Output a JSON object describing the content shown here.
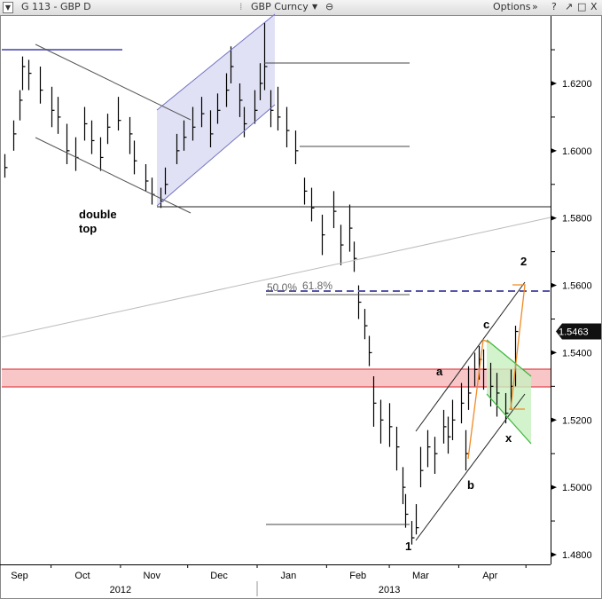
{
  "window": {
    "menu_icon": "triangle-down-icon",
    "title": "G 113 - GBP D",
    "ticker": "GBP Curncy",
    "ticker_icons": [
      "chevron-down-icon",
      "link-icon"
    ],
    "options_label": "Options",
    "options_icon": "double-chevron-down-icon",
    "controls": [
      "?",
      "↗",
      "□",
      "X"
    ]
  },
  "chart_data": {
    "type": "ohlc-bar",
    "ylim": [
      1.475,
      1.64
    ],
    "xlim": [
      "2012-09-09",
      "2013-05-12"
    ],
    "y_ticks": [
      "1.6200",
      "1.6000",
      "1.5800",
      "1.5600",
      "1.5400",
      "1.5200",
      "1.5000",
      "1.4800"
    ],
    "x_month_labels": [
      {
        "label": "Sep",
        "date": "2012-09-15"
      },
      {
        "label": "Oct",
        "date": "2012-10-15"
      },
      {
        "label": "Nov",
        "date": "2012-11-15"
      },
      {
        "label": "Dec",
        "date": "2012-12-15"
      },
      {
        "label": "Jan",
        "date": "2013-01-15"
      },
      {
        "label": "Feb",
        "date": "2013-02-15"
      },
      {
        "label": "Mar",
        "date": "2013-03-15"
      },
      {
        "label": "Apr",
        "date": "2013-04-15"
      }
    ],
    "x_month_ticks": [
      "2012-10-01",
      "2012-11-01",
      "2012-12-01",
      "2013-01-01",
      "2013-02-01",
      "2013-03-01",
      "2013-04-01",
      "2013-05-01"
    ],
    "x_year_labels": [
      {
        "label": "2012",
        "date": "2012-11-01"
      },
      {
        "label": "2013",
        "date": "2013-03-01"
      }
    ],
    "year_divider": "2013-01-01",
    "last_price": "1.5463",
    "last_price_value": 1.5463,
    "grid": false,
    "bars": [
      [
        "2012-09-10",
        1.599,
        1.592,
        1.595
      ],
      [
        "2012-09-14",
        1.609,
        1.6,
        1.605
      ],
      [
        "2012-09-17",
        1.618,
        1.609,
        1.615
      ],
      [
        "2012-09-18",
        1.628,
        1.618,
        1.625
      ],
      [
        "2012-09-21",
        1.627,
        1.618,
        1.623
      ],
      [
        "2012-09-26",
        1.625,
        1.614,
        1.618
      ],
      [
        "2012-10-01",
        1.619,
        1.607,
        1.612
      ],
      [
        "2012-10-04",
        1.616,
        1.605,
        1.61
      ],
      [
        "2012-10-08",
        1.608,
        1.596,
        1.6
      ],
      [
        "2012-10-12",
        1.604,
        1.594,
        1.598
      ],
      [
        "2012-10-16",
        1.613,
        1.603,
        1.608
      ],
      [
        "2012-10-19",
        1.609,
        1.599,
        1.603
      ],
      [
        "2012-10-23",
        1.604,
        1.594,
        1.598
      ],
      [
        "2012-10-26",
        1.611,
        1.602,
        1.607
      ],
      [
        "2012-10-31",
        1.616,
        1.606,
        1.609
      ],
      [
        "2012-11-05",
        1.61,
        1.599,
        1.605
      ],
      [
        "2012-11-07",
        1.603,
        1.593,
        1.597
      ],
      [
        "2012-11-12",
        1.596,
        1.588,
        1.591
      ],
      [
        "2012-11-15",
        1.592,
        1.584,
        1.587
      ],
      [
        "2012-11-19",
        1.589,
        1.583,
        1.585
      ],
      [
        "2012-11-21",
        1.595,
        1.587,
        1.59
      ],
      [
        "2012-11-26",
        1.605,
        1.596,
        1.6
      ],
      [
        "2012-11-29",
        1.609,
        1.6,
        1.604
      ],
      [
        "2012-12-03",
        1.613,
        1.603,
        1.607
      ],
      [
        "2012-12-07",
        1.616,
        1.607,
        1.611
      ],
      [
        "2012-12-11",
        1.612,
        1.601,
        1.605
      ],
      [
        "2012-12-14",
        1.617,
        1.608,
        1.612
      ],
      [
        "2012-12-18",
        1.623,
        1.613,
        1.618
      ],
      [
        "2012-12-20",
        1.631,
        1.62,
        1.625
      ],
      [
        "2012-12-24",
        1.62,
        1.61,
        1.615
      ],
      [
        "2012-12-26",
        1.613,
        1.604,
        1.608
      ],
      [
        "2012-12-31",
        1.618,
        1.608,
        1.612
      ],
      [
        "2013-01-02",
        1.626,
        1.615,
        1.62
      ],
      [
        "2013-01-04",
        1.638,
        1.618,
        1.625
      ],
      [
        "2013-01-07",
        1.618,
        1.607,
        1.612
      ],
      [
        "2013-01-10",
        1.619,
        1.606,
        1.61
      ],
      [
        "2013-01-14",
        1.613,
        1.601,
        1.606
      ],
      [
        "2013-01-18",
        1.606,
        1.596,
        1.6
      ],
      [
        "2013-01-22",
        1.592,
        1.584,
        1.588
      ],
      [
        "2013-01-25",
        1.589,
        1.579,
        1.583
      ],
      [
        "2013-01-30",
        1.581,
        1.569,
        1.575
      ],
      [
        "2013-02-04",
        1.588,
        1.577,
        1.582
      ],
      [
        "2013-02-07",
        1.578,
        1.566,
        1.572
      ],
      [
        "2013-02-11",
        1.584,
        1.57,
        1.577
      ],
      [
        "2013-02-13",
        1.573,
        1.564,
        1.568
      ],
      [
        "2013-02-15",
        1.56,
        1.55,
        1.555
      ],
      [
        "2013-02-18",
        1.553,
        1.544,
        1.548
      ],
      [
        "2013-02-20",
        1.545,
        1.536,
        1.54
      ],
      [
        "2013-02-22",
        1.533,
        1.518,
        1.525
      ],
      [
        "2013-02-25",
        1.526,
        1.513,
        1.52
      ],
      [
        "2013-03-01",
        1.525,
        1.512,
        1.518
      ],
      [
        "2013-03-04",
        1.518,
        1.505,
        1.512
      ],
      [
        "2013-03-07",
        1.506,
        1.495,
        1.5
      ],
      [
        "2013-03-08",
        1.498,
        1.488,
        1.492
      ],
      [
        "2013-03-11",
        1.49,
        1.483,
        1.485
      ],
      [
        "2013-03-13",
        1.495,
        1.486,
        1.488
      ],
      [
        "2013-03-15",
        1.512,
        1.5,
        1.505
      ],
      [
        "2013-03-18",
        1.517,
        1.506,
        1.512
      ],
      [
        "2013-03-21",
        1.515,
        1.504,
        1.51
      ],
      [
        "2013-03-25",
        1.523,
        1.513,
        1.518
      ],
      [
        "2013-03-27",
        1.521,
        1.51,
        1.515
      ],
      [
        "2013-03-29",
        1.526,
        1.514,
        1.52
      ],
      [
        "2013-04-02",
        1.531,
        1.519,
        1.525
      ],
      [
        "2013-04-04",
        1.517,
        1.505,
        1.51
      ],
      [
        "2013-04-05",
        1.536,
        1.523,
        1.528
      ],
      [
        "2013-04-08",
        1.54,
        1.53,
        1.535
      ],
      [
        "2013-04-10",
        1.542,
        1.532,
        1.538
      ],
      [
        "2013-04-12",
        1.541,
        1.529,
        1.535
      ],
      [
        "2013-04-15",
        1.537,
        1.524,
        1.53
      ],
      [
        "2013-04-18",
        1.534,
        1.521,
        1.528
      ],
      [
        "2013-04-22",
        1.528,
        1.519,
        1.522
      ],
      [
        "2013-04-24",
        1.535,
        1.523,
        1.53
      ],
      [
        "2013-04-26",
        1.548,
        1.53,
        1.5463
      ]
    ]
  },
  "annotations": {
    "double_top_line1": "double",
    "double_top_line2": "top",
    "fib_50": "50.0%",
    "fib_618": "61.8%",
    "wave_1": "1",
    "wave_2": "2",
    "wave_a": "a",
    "wave_b": "b",
    "wave_c": "c",
    "wave_x": "x",
    "colors": {
      "bars": "#000000",
      "resistance_band": "#f9c6c8",
      "resistance_border": "#e0474c",
      "rising_channel_fill": "#dcdcf3",
      "channel_line": "#7070c0",
      "flag_fill": "#c8f0c0",
      "flag_line": "#3bb53b",
      "wave_path": "#f08a24",
      "fib_dash": "#5555aa"
    }
  }
}
